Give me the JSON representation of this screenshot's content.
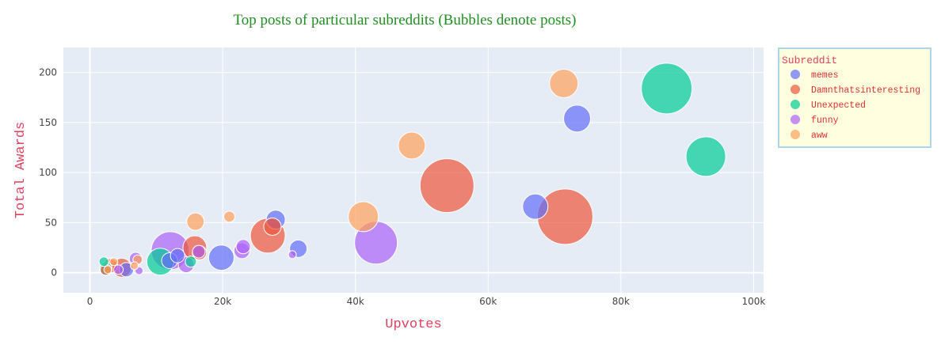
{
  "chart_data": {
    "type": "scatter",
    "title": "Top posts of particular subreddits (Bubbles denote posts)",
    "xlabel": "Upvotes",
    "ylabel": "Total Awards",
    "xlim": [
      -4000,
      101500
    ],
    "ylim": [
      -20,
      225
    ],
    "x_ticks": [
      0,
      20000,
      40000,
      60000,
      80000,
      100000
    ],
    "x_tick_labels": [
      "0",
      "20k",
      "40k",
      "60k",
      "80k",
      "100k"
    ],
    "y_ticks": [
      0,
      50,
      100,
      150,
      200
    ],
    "y_tick_labels": [
      "0",
      "50",
      "100",
      "150",
      "200"
    ],
    "grid": true,
    "legend_placement": "right",
    "legend_title": "Subreddit",
    "background": "#e5ecf6",
    "legend_background": "#ffffe0",
    "legend_border": "#a8d8ea",
    "series": [
      {
        "name": "memes",
        "color": "#636efa",
        "points": [
          {
            "x": 73400,
            "y": 154,
            "size": 17
          },
          {
            "x": 67100,
            "y": 66,
            "size": 16
          },
          {
            "x": 28000,
            "y": 53,
            "size": 12
          },
          {
            "x": 31400,
            "y": 24,
            "size": 11
          },
          {
            "x": 19800,
            "y": 15,
            "size": 16
          },
          {
            "x": 13200,
            "y": 17,
            "size": 9
          },
          {
            "x": 12000,
            "y": 12,
            "size": 10
          },
          {
            "x": 5500,
            "y": 3,
            "size": 9
          }
        ]
      },
      {
        "name": "Damnthatsinteresting",
        "color": "#ef553b",
        "points": [
          {
            "x": 53800,
            "y": 87,
            "size": 34
          },
          {
            "x": 71600,
            "y": 56,
            "size": 35
          },
          {
            "x": 26800,
            "y": 37,
            "size": 22
          },
          {
            "x": 27500,
            "y": 46,
            "size": 11
          },
          {
            "x": 15800,
            "y": 25,
            "size": 15
          },
          {
            "x": 16500,
            "y": 20,
            "size": 9
          },
          {
            "x": 4800,
            "y": 5,
            "size": 12
          },
          {
            "x": 3100,
            "y": 7,
            "size": 9
          },
          {
            "x": 2400,
            "y": 3,
            "size": 7
          }
        ]
      },
      {
        "name": "Unexpected",
        "color": "#00cc96",
        "points": [
          {
            "x": 86900,
            "y": 184,
            "size": 32
          },
          {
            "x": 92800,
            "y": 116,
            "size": 25
          },
          {
            "x": 10600,
            "y": 11,
            "size": 17
          },
          {
            "x": 15200,
            "y": 11,
            "size": 7
          },
          {
            "x": 2100,
            "y": 11,
            "size": 6
          },
          {
            "x": 2400,
            "y": 4,
            "size": 8
          }
        ]
      },
      {
        "name": "funny",
        "color": "#ab63fa",
        "points": [
          {
            "x": 43100,
            "y": 30,
            "size": 27
          },
          {
            "x": 12100,
            "y": 22,
            "size": 24
          },
          {
            "x": 14500,
            "y": 8,
            "size": 10
          },
          {
            "x": 22900,
            "y": 22,
            "size": 10
          },
          {
            "x": 23100,
            "y": 26,
            "size": 9
          },
          {
            "x": 16400,
            "y": 21,
            "size": 8
          },
          {
            "x": 6900,
            "y": 14,
            "size": 8
          },
          {
            "x": 30500,
            "y": 18,
            "size": 5
          },
          {
            "x": 4300,
            "y": 3,
            "size": 6
          },
          {
            "x": 7400,
            "y": 2,
            "size": 5
          }
        ]
      },
      {
        "name": "aww",
        "color": "#fecb52",
        "display_color": "#ffa15a",
        "points": [
          {
            "x": 71400,
            "y": 189,
            "size": 18
          },
          {
            "x": 48500,
            "y": 127,
            "size": 17
          },
          {
            "x": 41200,
            "y": 56,
            "size": 19
          },
          {
            "x": 15900,
            "y": 51,
            "size": 11
          },
          {
            "x": 21000,
            "y": 56,
            "size": 7
          },
          {
            "x": 7200,
            "y": 13,
            "size": 6
          },
          {
            "x": 6700,
            "y": 7,
            "size": 5
          },
          {
            "x": 3600,
            "y": 11,
            "size": 5
          },
          {
            "x": 2700,
            "y": 3,
            "size": 5
          }
        ]
      }
    ]
  }
}
